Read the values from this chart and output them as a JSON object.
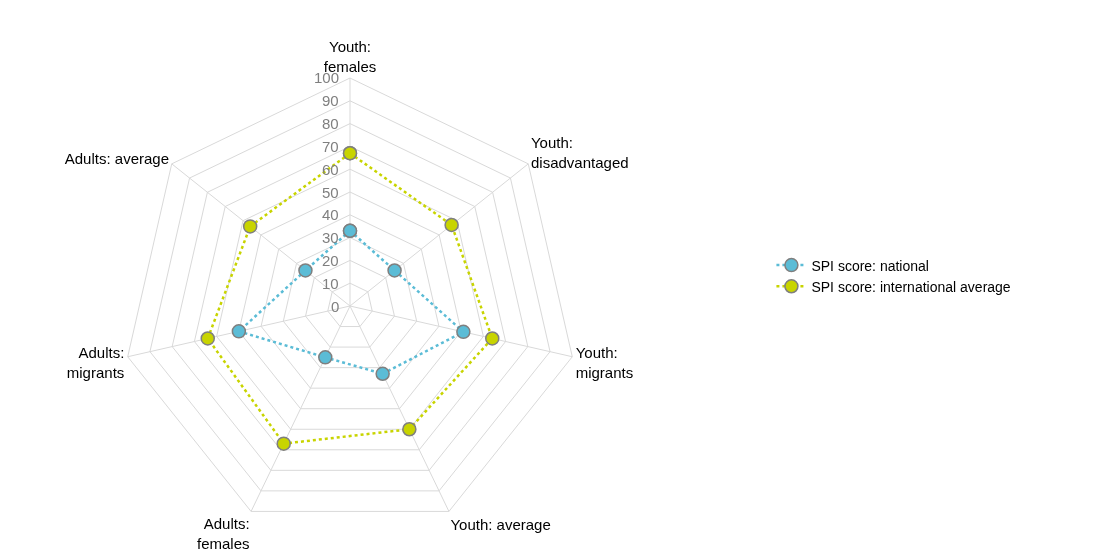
{
  "chart_data": {
    "type": "radar",
    "categories": [
      "Youth:\nfemales",
      "Youth:\ndisadvantaged",
      "Youth:\nmigrants",
      "Youth: average",
      "Adults:\nfemales",
      "Adults:\nmigrants",
      "Adults: average"
    ],
    "series": [
      {
        "name": "SPI score: national",
        "color": "#5bbcd6",
        "values": [
          33,
          25,
          51,
          33,
          25,
          50,
          25
        ]
      },
      {
        "name": "SPI score: international average",
        "color": "#c8d400",
        "values": [
          67,
          57,
          64,
          60,
          67,
          64,
          56
        ]
      }
    ],
    "ylim": [
      0,
      100
    ],
    "yticks": [
      0,
      10,
      20,
      30,
      40,
      50,
      60,
      70,
      80,
      90,
      100
    ],
    "grid": true,
    "legend": "right",
    "marker": "circle",
    "line_style": "dotted"
  }
}
